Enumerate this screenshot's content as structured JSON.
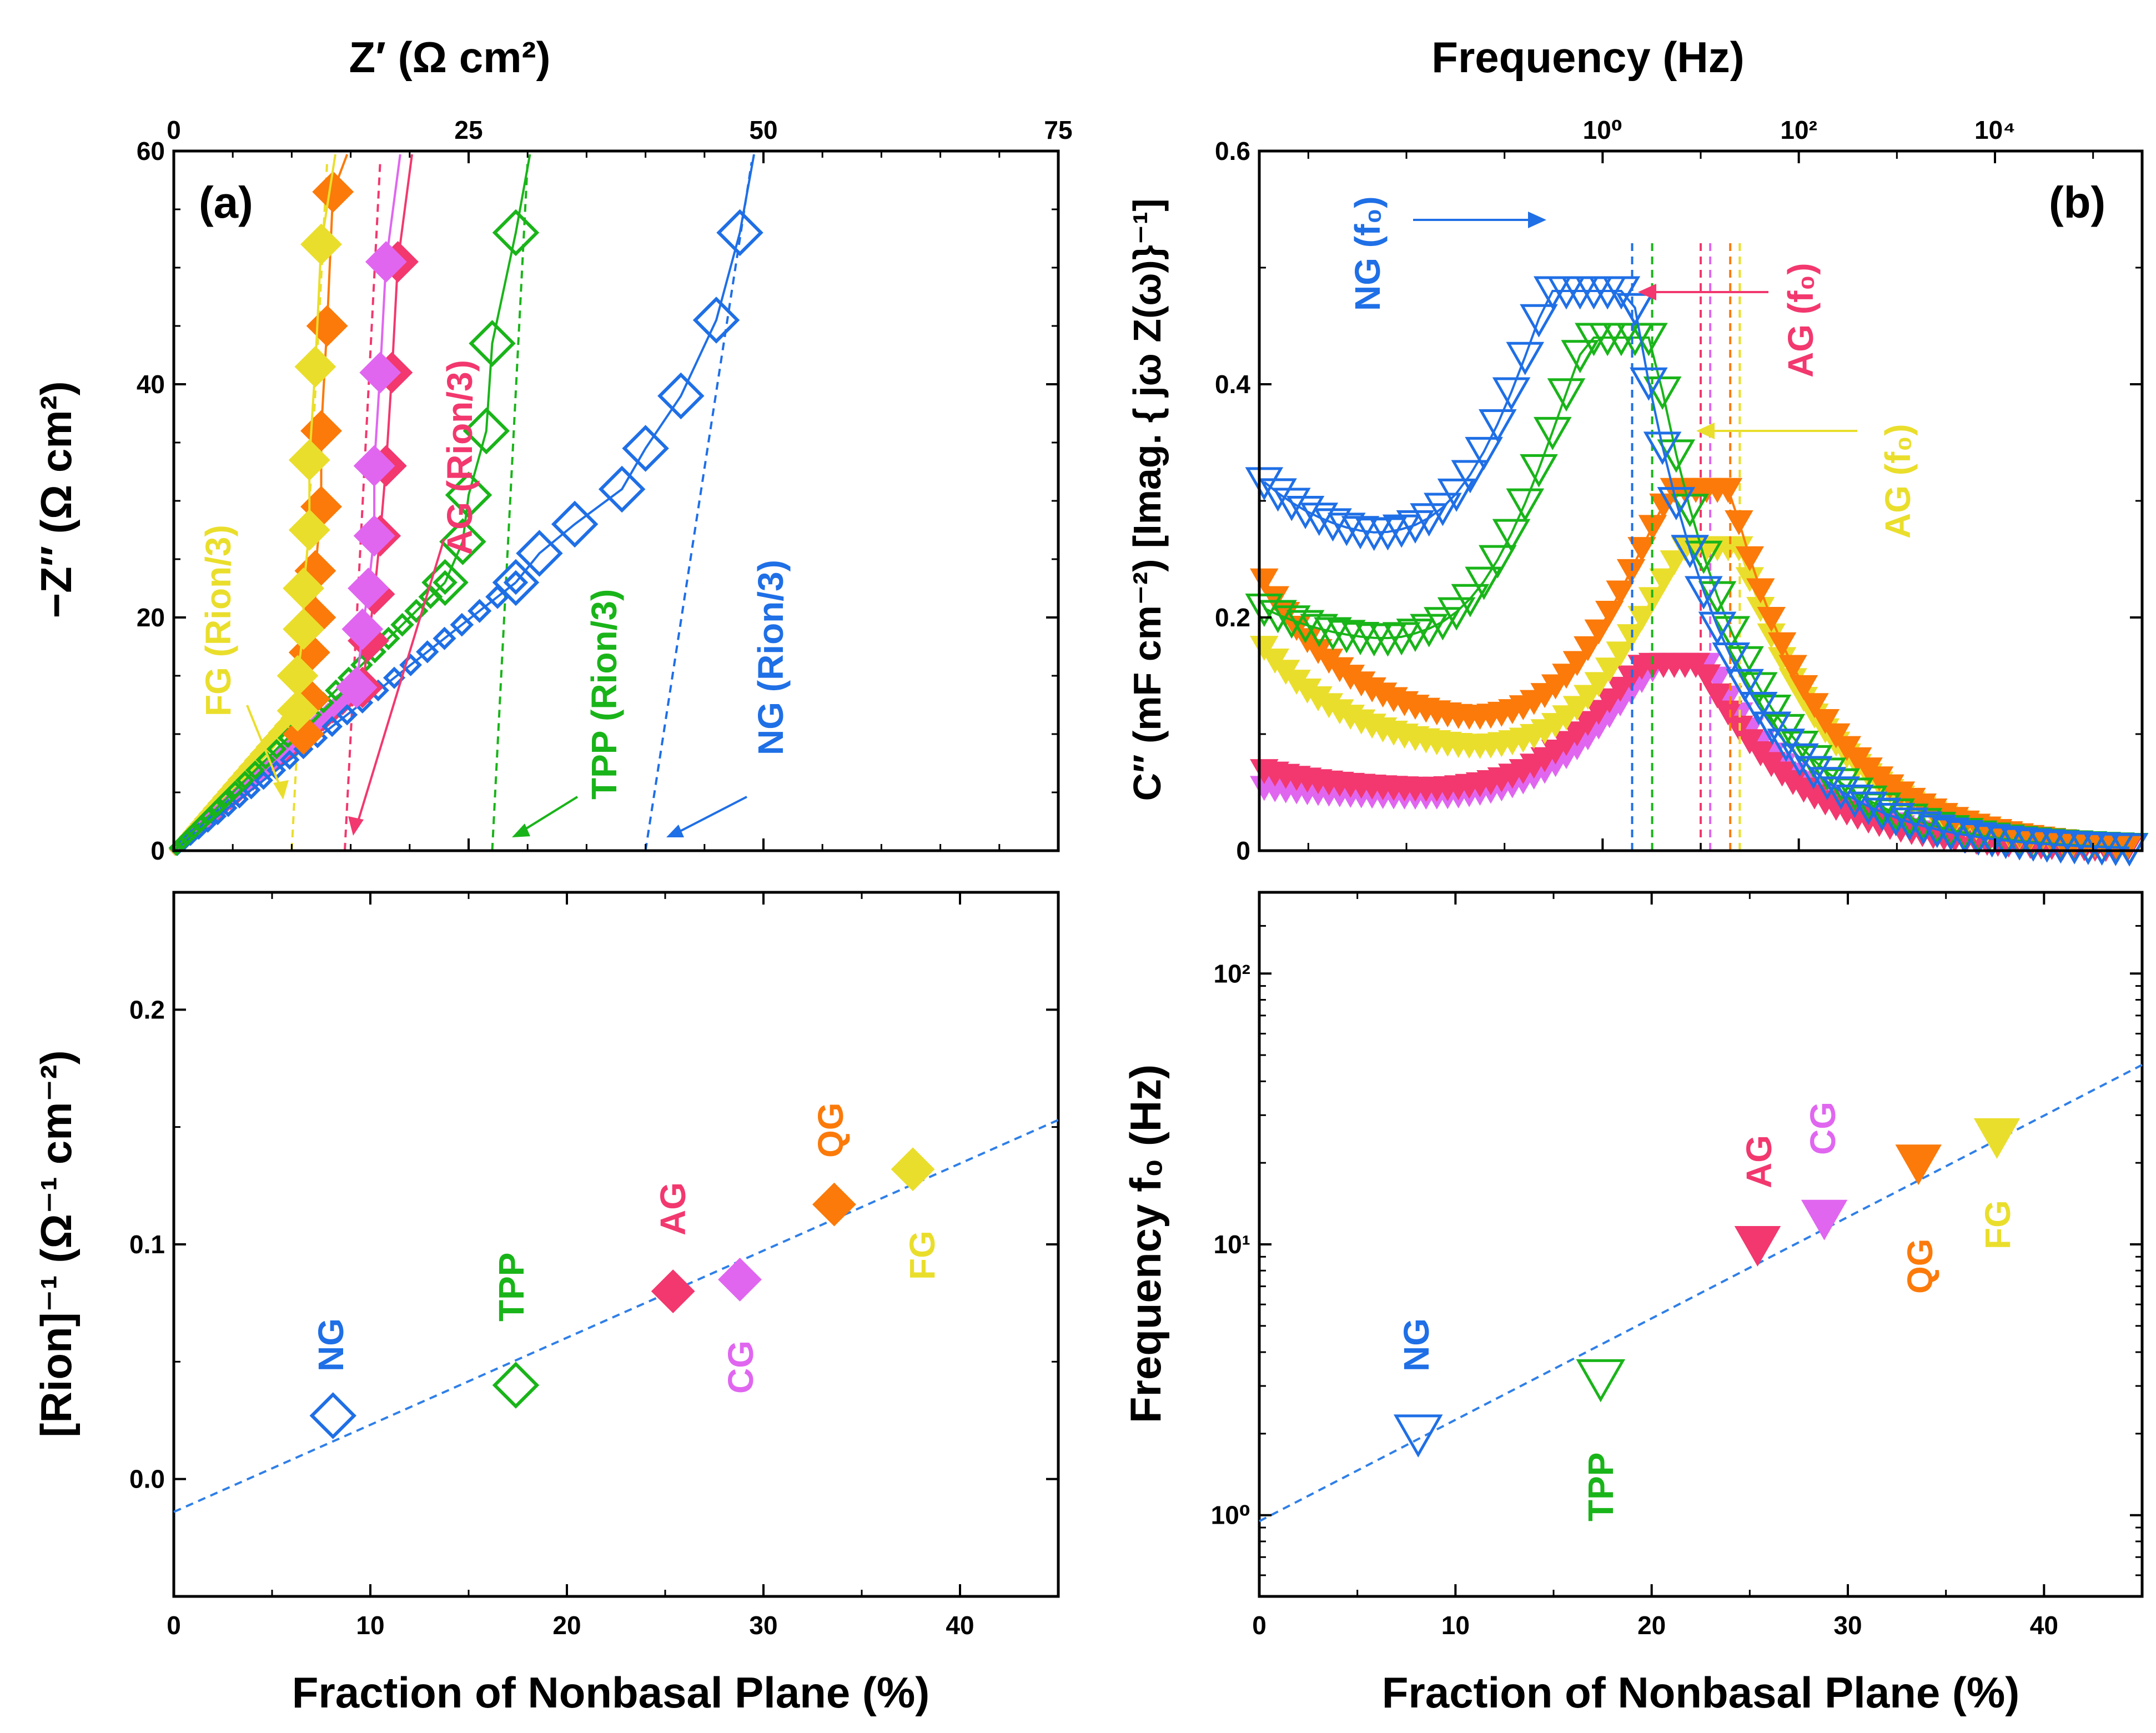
{
  "colors": {
    "NG": "#1f6fe6",
    "TPP": "#19b419",
    "AG": "#f2386e",
    "CG": "#e066f0",
    "QG": "#fb7a0a",
    "FG": "#eade2c",
    "fit": "#2f7fe8",
    "axis": "#000000"
  },
  "chart_data": [
    {
      "id": "a_top",
      "type": "scatter",
      "panel_label": "(a)",
      "title": "",
      "xlabel": "Z′ (Ω cm²)",
      "ylabel": "−Z″ (Ω cm²)",
      "xlim": [
        0,
        75
      ],
      "ylim": [
        0,
        60
      ],
      "xticks": [
        "0",
        "25",
        "50",
        "75"
      ],
      "yticks": [
        "0",
        "20",
        "40",
        "60"
      ],
      "series": [
        {
          "name": "NG",
          "marker": "diamond-open",
          "points": [
            [
              29,
              23
            ],
            [
              31,
              25.5
            ],
            [
              34,
              28
            ],
            [
              38,
              31
            ],
            [
              40,
              34.5
            ],
            [
              43,
              39
            ],
            [
              46,
              45.5
            ],
            [
              48,
              53
            ]
          ]
        },
        {
          "name": "TPP",
          "marker": "diamond-open",
          "points": [
            [
              23,
              23
            ],
            [
              24.5,
              26.5
            ],
            [
              25,
              30.5
            ],
            [
              26.5,
              36
            ],
            [
              27,
              43.5
            ],
            [
              29,
              53
            ]
          ]
        },
        {
          "name": "AG",
          "marker": "diamond",
          "points": [
            [
              16,
              14
            ],
            [
              16.5,
              18
            ],
            [
              17,
              22
            ],
            [
              17.5,
              27
            ],
            [
              18,
              33
            ],
            [
              18.5,
              41
            ],
            [
              19,
              50.5
            ]
          ]
        },
        {
          "name": "CG",
          "marker": "diamond",
          "points": [
            [
              15.5,
              14
            ],
            [
              16,
              19
            ],
            [
              16.5,
              22.5
            ],
            [
              17,
              27
            ],
            [
              17,
              33
            ],
            [
              17.5,
              41
            ],
            [
              18,
              50.5
            ]
          ]
        },
        {
          "name": "QG",
          "marker": "diamond",
          "points": [
            [
              11,
              10
            ],
            [
              11.5,
              13
            ],
            [
              11.5,
              17
            ],
            [
              12,
              20
            ],
            [
              12,
              24
            ],
            [
              12.5,
              29.5
            ],
            [
              12.5,
              36
            ],
            [
              13,
              45
            ],
            [
              13.5,
              56.5
            ]
          ]
        },
        {
          "name": "FG",
          "marker": "diamond",
          "points": [
            [
              10.5,
              12
            ],
            [
              10.5,
              15
            ],
            [
              11,
              19
            ],
            [
              11,
              22.5
            ],
            [
              11.5,
              27.5
            ],
            [
              11.5,
              33.5
            ],
            [
              12,
              41.5
            ],
            [
              12.5,
              52
            ]
          ]
        }
      ],
      "reference_lines": [
        {
          "name": "NG",
          "x_at_zero": 40,
          "label": "NG (Rion/3)"
        },
        {
          "name": "TPP",
          "x_at_zero": 27,
          "label": "TPP (Rion/3)"
        },
        {
          "name": "AG",
          "x_at_zero": 14.5,
          "label": "AG (Rion/3)"
        },
        {
          "name": "FG",
          "x_at_zero": 10,
          "label": "FG (Rion/3)"
        }
      ]
    },
    {
      "id": "a_bottom",
      "type": "scatter",
      "title": "",
      "xlabel": "Fraction of Nonbasal Plane (%)",
      "ylabel": "[Rion]⁻¹ (Ω⁻¹ cm⁻²)",
      "xlim": [
        0,
        45
      ],
      "ylim": [
        -0.05,
        0.25
      ],
      "xticks": [
        "0",
        "10",
        "20",
        "30",
        "40"
      ],
      "yticks": [
        "0.0",
        "0.1",
        "0.2"
      ],
      "points": [
        {
          "name": "NG",
          "x": 8.1,
          "y": 0.027,
          "marker": "diamond-open"
        },
        {
          "name": "TPP",
          "x": 17.4,
          "y": 0.04,
          "marker": "diamond-open"
        },
        {
          "name": "AG",
          "x": 25.4,
          "y": 0.08,
          "marker": "diamond"
        },
        {
          "name": "CG",
          "x": 28.8,
          "y": 0.085,
          "marker": "diamond"
        },
        {
          "name": "QG",
          "x": 33.6,
          "y": 0.117,
          "marker": "diamond"
        },
        {
          "name": "FG",
          "x": 37.6,
          "y": 0.132,
          "marker": "diamond"
        }
      ],
      "fit_line": [
        [
          0,
          -0.014
        ],
        [
          45,
          0.153
        ]
      ]
    },
    {
      "id": "b_top",
      "type": "scatter",
      "panel_label": "(b)",
      "title": "",
      "xlabel": "Frequency (Hz)",
      "x_scale": "log",
      "ylabel": "C″ (mF cm⁻²) [Imag. { jω Z(ω)}⁻¹]",
      "xlim_log10": [
        -3.5,
        5.5
      ],
      "ylim": [
        0,
        0.6
      ],
      "xticks": [
        "10⁰",
        "10²",
        "10⁴"
      ],
      "yticks": [
        "0",
        "0.2",
        "0.4",
        "0.6"
      ],
      "peaks": [
        {
          "name": "NG",
          "f0_hz": 2,
          "peak_c": 0.48
        },
        {
          "name": "TPP",
          "f0_hz": 3.2,
          "peak_c": 0.44
        },
        {
          "name": "AG",
          "f0_hz": 10,
          "peak_c": 0.16
        },
        {
          "name": "CG",
          "f0_hz": 12.5,
          "peak_c": 0.16
        },
        {
          "name": "QG",
          "f0_hz": 20,
          "peak_c": 0.31
        },
        {
          "name": "FG",
          "f0_hz": 25,
          "peak_c": 0.26
        }
      ],
      "low_freq_values": [
        {
          "name": "NG",
          "c_min": 0.25,
          "c_start": 0.32
        },
        {
          "name": "TPP",
          "c_min": 0.17,
          "c_start": 0.21
        },
        {
          "name": "QG",
          "c_min": 0.1,
          "c_start": 0.24
        },
        {
          "name": "FG",
          "c_min": 0.08,
          "c_start": 0.18
        },
        {
          "name": "AG",
          "c_min": 0.05,
          "c_start": 0.07
        },
        {
          "name": "CG",
          "c_min": 0.045,
          "c_start": 0.055
        }
      ]
    },
    {
      "id": "b_bottom",
      "type": "scatter",
      "y_scale": "log",
      "title": "",
      "xlabel": "Fraction of Nonbasal Plane (%)",
      "ylabel": "Frequency f₀ (Hz)",
      "xlim": [
        0,
        45
      ],
      "ylim_log10": [
        -0.3,
        2.3
      ],
      "xticks": [
        "0",
        "10",
        "20",
        "30",
        "40"
      ],
      "yticks": [
        "10⁰",
        "10¹",
        "10²"
      ],
      "points": [
        {
          "name": "NG",
          "x": 8.1,
          "y": 2.0,
          "marker": "triangle-down-open"
        },
        {
          "name": "TPP",
          "x": 17.4,
          "y": 3.2,
          "marker": "triangle-down-open"
        },
        {
          "name": "AG",
          "x": 25.4,
          "y": 10,
          "marker": "triangle-down"
        },
        {
          "name": "CG",
          "x": 28.8,
          "y": 12.5,
          "marker": "triangle-down"
        },
        {
          "name": "QG",
          "x": 33.6,
          "y": 20,
          "marker": "triangle-down"
        },
        {
          "name": "FG",
          "x": 37.6,
          "y": 25,
          "marker": "triangle-down"
        }
      ],
      "fit_line": [
        [
          0,
          0.95
        ],
        [
          45,
          46
        ]
      ]
    }
  ],
  "labels": {
    "panel_a": "(a)",
    "panel_b": "(b)",
    "a_top_xtitle": "Z′ (Ω cm²)",
    "a_top_ytitle": "−Z″ (Ω cm²)",
    "b_top_xtitle": "Frequency (Hz)",
    "b_top_ytitle": "C″ (mF cm⁻²) [Imag. { jω Z(ω)}⁻¹]",
    "bottom_xtitle": "Fraction of Nonbasal Plane (%)",
    "a_bottom_ytitle": "[Rion]⁻¹ (Ω⁻¹ cm⁻²)",
    "b_bottom_ytitle": "Frequency f₀ (Hz)",
    "ann_fg_rion": "FG (Rion/3)",
    "ann_ag_rion": "AG (Rion/3)",
    "ann_tpp_rion": "TPP (Rion/3)",
    "ann_ng_rion": "NG (Rion/3)",
    "ann_ng_f0": "NG (f₀)",
    "ann_ag_f0_pink": "AG (f₀)",
    "ann_ag_f0_yellow": "AG (f₀)",
    "pt_NG": "NG",
    "pt_TPP": "TPP",
    "pt_AG": "AG",
    "pt_CG": "CG",
    "pt_QG": "QG",
    "pt_FG": "FG"
  }
}
